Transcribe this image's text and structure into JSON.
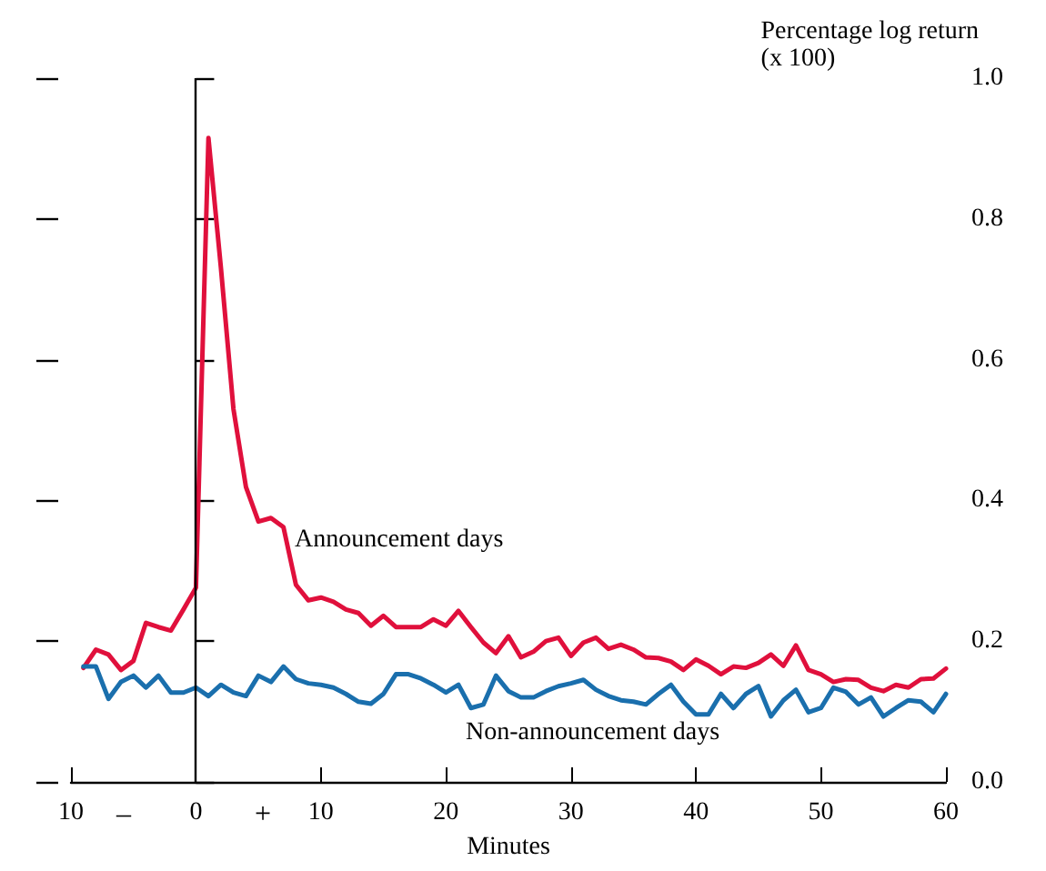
{
  "chart_data": {
    "type": "line",
    "xlabel": "Minutes",
    "ylabel": "Percentage log return\n(x 100)",
    "x": [
      -9,
      -8,
      -7,
      -6,
      -5,
      -4,
      -3,
      -2,
      -1,
      0,
      1,
      2,
      3,
      4,
      5,
      6,
      7,
      8,
      9,
      10,
      11,
      12,
      13,
      14,
      15,
      16,
      17,
      18,
      19,
      20,
      21,
      22,
      23,
      24,
      25,
      26,
      27,
      28,
      29,
      30,
      31,
      32,
      33,
      34,
      35,
      36,
      37,
      38,
      39,
      40,
      41,
      42,
      43,
      44,
      45,
      46,
      47,
      48,
      49,
      50,
      51,
      52,
      53,
      54,
      55,
      56,
      57,
      58,
      59,
      60
    ],
    "series": [
      {
        "name": "Announcement days",
        "color": "#e0103c",
        "values": [
          0.162,
          0.188,
          0.181,
          0.159,
          0.172,
          0.226,
          0.22,
          0.215,
          0.245,
          0.276,
          0.915,
          0.73,
          0.53,
          0.419,
          0.37,
          0.375,
          0.362,
          0.28,
          0.258,
          0.262,
          0.256,
          0.245,
          0.24,
          0.222,
          0.236,
          0.22,
          0.22,
          0.22,
          0.231,
          0.222,
          0.243,
          0.22,
          0.198,
          0.183,
          0.207,
          0.177,
          0.185,
          0.2,
          0.205,
          0.179,
          0.198,
          0.205,
          0.189,
          0.195,
          0.188,
          0.177,
          0.176,
          0.171,
          0.159,
          0.174,
          0.165,
          0.153,
          0.164,
          0.162,
          0.169,
          0.181,
          0.165,
          0.194,
          0.159,
          0.153,
          0.142,
          0.146,
          0.145,
          0.134,
          0.129,
          0.138,
          0.134,
          0.146,
          0.147,
          0.161
        ]
      },
      {
        "name": "Non-announcement days",
        "color": "#1a6fad",
        "values": [
          0.164,
          0.164,
          0.118,
          0.142,
          0.151,
          0.134,
          0.151,
          0.127,
          0.127,
          0.134,
          0.122,
          0.138,
          0.127,
          0.122,
          0.151,
          0.142,
          0.164,
          0.146,
          0.14,
          0.138,
          0.134,
          0.125,
          0.114,
          0.111,
          0.125,
          0.153,
          0.153,
          0.147,
          0.138,
          0.127,
          0.138,
          0.105,
          0.11,
          0.151,
          0.129,
          0.12,
          0.12,
          0.129,
          0.136,
          0.14,
          0.145,
          0.131,
          0.122,
          0.116,
          0.114,
          0.11,
          0.125,
          0.138,
          0.114,
          0.096,
          0.096,
          0.125,
          0.105,
          0.125,
          0.136,
          0.093,
          0.116,
          0.131,
          0.099,
          0.105,
          0.134,
          0.128,
          0.11,
          0.12,
          0.093,
          0.105,
          0.116,
          0.114,
          0.099,
          0.125
        ]
      }
    ],
    "xlim": [
      -10,
      60
    ],
    "xticks": [
      {
        "value": -10,
        "label": "10"
      },
      0,
      10,
      20,
      30,
      40,
      50,
      60
    ],
    "ylim": [
      0,
      1
    ],
    "yticks": [
      {
        "value": 0,
        "label": "0.0"
      },
      0.2,
      0.4,
      0.6,
      0.8,
      {
        "value": 1,
        "label": "1.0"
      }
    ],
    "ref_lines": [
      {
        "axis": "x",
        "value": 0,
        "color": "#000000"
      }
    ],
    "annotations": [
      "–",
      "+"
    ],
    "grid": false,
    "legend": false,
    "marker": "none",
    "line_style": "solid"
  }
}
